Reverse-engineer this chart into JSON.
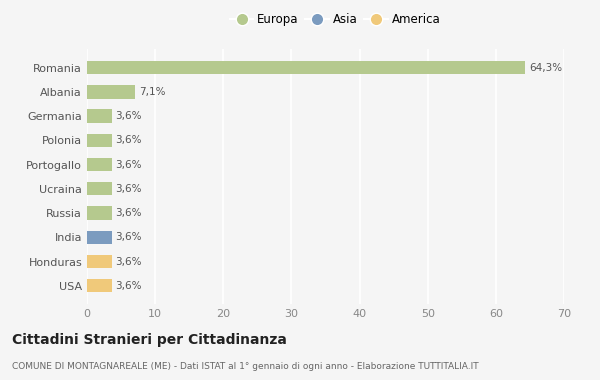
{
  "categories": [
    "Romania",
    "Albania",
    "Germania",
    "Polonia",
    "Portogallo",
    "Ucraina",
    "Russia",
    "India",
    "Honduras",
    "USA"
  ],
  "values": [
    64.3,
    7.1,
    3.6,
    3.6,
    3.6,
    3.6,
    3.6,
    3.6,
    3.6,
    3.6
  ],
  "labels": [
    "64,3%",
    "7,1%",
    "3,6%",
    "3,6%",
    "3,6%",
    "3,6%",
    "3,6%",
    "3,6%",
    "3,6%",
    "3,6%"
  ],
  "colors": [
    "#b5c98e",
    "#b5c98e",
    "#b5c98e",
    "#b5c98e",
    "#b5c98e",
    "#b5c98e",
    "#b5c98e",
    "#7b9bbf",
    "#f0c97a",
    "#f0c97a"
  ],
  "legend_labels": [
    "Europa",
    "Asia",
    "America"
  ],
  "legend_colors": [
    "#b5c98e",
    "#7b9bbf",
    "#f0c97a"
  ],
  "xlim": [
    0,
    70
  ],
  "xticks": [
    0,
    10,
    20,
    30,
    40,
    50,
    60,
    70
  ],
  "title": "Cittadini Stranieri per Cittadinanza",
  "subtitle": "COMUNE DI MONTAGNAREALE (ME) - Dati ISTAT al 1° gennaio di ogni anno - Elaborazione TUTTITALIA.IT",
  "bg_color": "#f5f5f5",
  "grid_color": "#ffffff",
  "bar_height": 0.55
}
